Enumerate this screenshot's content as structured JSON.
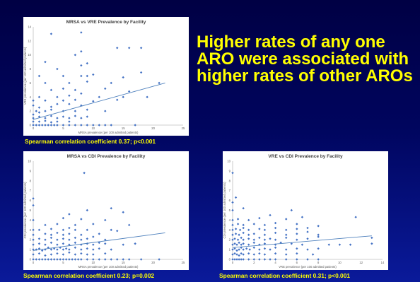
{
  "headline": "Higher rates of any one ARO were associated with higher rates of other AROs",
  "captions": [
    "Spearman correlation coefficient 0.37; p<0.001",
    "Spearman correlation coefficient 0.23; p=0.002",
    "Spearman correlation coefficient 0.31; p<0.001"
  ],
  "colors": {
    "point": "#4472c4",
    "trend": "#4f81bd",
    "caption": "#ffff00"
  },
  "chart_data": [
    {
      "type": "scatter",
      "title": "MRSA vs VRE Prevalence by Facility",
      "xlabel": "MRSA prevalence (per 100 admitted patients)",
      "ylabel": "VRE prevalence (per 100 admitted patients)",
      "xlim": [
        0,
        25
      ],
      "ylim": [
        0,
        14
      ],
      "xticks": [
        0,
        5,
        10,
        15,
        20,
        25
      ],
      "yticks": [
        0,
        2,
        4,
        6,
        8,
        10,
        12,
        14
      ],
      "grid": false,
      "trendline": [
        [
          0,
          0.8
        ],
        [
          22,
          6.0
        ]
      ],
      "points": [
        [
          0,
          0
        ],
        [
          0.5,
          0
        ],
        [
          1,
          0
        ],
        [
          1.5,
          0
        ],
        [
          2,
          0
        ],
        [
          2.5,
          0
        ],
        [
          3,
          0
        ],
        [
          3.5,
          0
        ],
        [
          4,
          0
        ],
        [
          5,
          0
        ],
        [
          6,
          0
        ],
        [
          7,
          0
        ],
        [
          8,
          0
        ],
        [
          9,
          0
        ],
        [
          10,
          0
        ],
        [
          11,
          0
        ],
        [
          12,
          0
        ],
        [
          13,
          0
        ],
        [
          17,
          0
        ],
        [
          0,
          0.5
        ],
        [
          1,
          0.5
        ],
        [
          2,
          0.6
        ],
        [
          3,
          0.4
        ],
        [
          4,
          0.5
        ],
        [
          6,
          0.5
        ],
        [
          0,
          1
        ],
        [
          1,
          1.2
        ],
        [
          2,
          1
        ],
        [
          3,
          1.3
        ],
        [
          4,
          1
        ],
        [
          5,
          1.2
        ],
        [
          6,
          1
        ],
        [
          7,
          1.3
        ],
        [
          8,
          1
        ],
        [
          9,
          1.2
        ],
        [
          0,
          1.5
        ],
        [
          0.5,
          2
        ],
        [
          1,
          1.8
        ],
        [
          2,
          2
        ],
        [
          3,
          2.2
        ],
        [
          5,
          2
        ],
        [
          7,
          2
        ],
        [
          9,
          2.2
        ],
        [
          12,
          2
        ],
        [
          1,
          2.5
        ],
        [
          3,
          2.6
        ],
        [
          4,
          3
        ],
        [
          6,
          3
        ],
        [
          8,
          2.8
        ],
        [
          0,
          2.8
        ],
        [
          0,
          3.5
        ],
        [
          2,
          3.5
        ],
        [
          5,
          3.5
        ],
        [
          7,
          3.6
        ],
        [
          10,
          3.4
        ],
        [
          14,
          3.6
        ],
        [
          1,
          4
        ],
        [
          4,
          4
        ],
        [
          6,
          4.2
        ],
        [
          8,
          4.5
        ],
        [
          11,
          4
        ],
        [
          15,
          4
        ],
        [
          19,
          4
        ],
        [
          3,
          5
        ],
        [
          5,
          5.2
        ],
        [
          7,
          5
        ],
        [
          12,
          5.2
        ],
        [
          16,
          4.8
        ],
        [
          2,
          6
        ],
        [
          6,
          6
        ],
        [
          9,
          6.2
        ],
        [
          13,
          6
        ],
        [
          21,
          6
        ],
        [
          1,
          7
        ],
        [
          5,
          7
        ],
        [
          8,
          7
        ],
        [
          9,
          7
        ],
        [
          10,
          7.2
        ],
        [
          15,
          6.8
        ],
        [
          4,
          8
        ],
        [
          8,
          8.5
        ],
        [
          18,
          7.5
        ],
        [
          2,
          9
        ],
        [
          9,
          8.8
        ],
        [
          7,
          10
        ],
        [
          8,
          10.5
        ],
        [
          14,
          11
        ],
        [
          16,
          11
        ],
        [
          18,
          11
        ],
        [
          3,
          13
        ],
        [
          8,
          13.2
        ]
      ]
    },
    {
      "type": "scatter",
      "title": "MRSA vs CDI Prevalence by Facility",
      "xlabel": "MRSA prevalence (per 100 admitted patients)",
      "ylabel": "CDI prevalence (per 100 admitted patients)",
      "xlim": [
        0,
        25
      ],
      "ylim": [
        0,
        10
      ],
      "xticks": [
        0,
        5,
        10,
        15,
        20,
        25
      ],
      "yticks": [
        0,
        1,
        2,
        3,
        4,
        5,
        6,
        7,
        8,
        9,
        10
      ],
      "grid": false,
      "trendline": [
        [
          0,
          0.9
        ],
        [
          22,
          2.7
        ]
      ],
      "points": [
        [
          0,
          0
        ],
        [
          0.5,
          0
        ],
        [
          1,
          0
        ],
        [
          1.5,
          0
        ],
        [
          2,
          0
        ],
        [
          2.5,
          0
        ],
        [
          3,
          0
        ],
        [
          3.5,
          0
        ],
        [
          4,
          0
        ],
        [
          4.5,
          0
        ],
        [
          5,
          0
        ],
        [
          5.5,
          0
        ],
        [
          6,
          0
        ],
        [
          6.5,
          0
        ],
        [
          7,
          0
        ],
        [
          7.5,
          0
        ],
        [
          8,
          0
        ],
        [
          9,
          0
        ],
        [
          10,
          0
        ],
        [
          11,
          0
        ],
        [
          12,
          0
        ],
        [
          13,
          0
        ],
        [
          14,
          0
        ],
        [
          15,
          0
        ],
        [
          16,
          0
        ],
        [
          18,
          0
        ],
        [
          21,
          0
        ],
        [
          0,
          0.5
        ],
        [
          1,
          0.6
        ],
        [
          2,
          0.4
        ],
        [
          3,
          0.5
        ],
        [
          4,
          0.6
        ],
        [
          5,
          0.5
        ],
        [
          6,
          0.7
        ],
        [
          7,
          0.5
        ],
        [
          8,
          0.6
        ],
        [
          9,
          0.5
        ],
        [
          10,
          0.5
        ],
        [
          12,
          0.6
        ],
        [
          0,
          1
        ],
        [
          0.5,
          1
        ],
        [
          1,
          1.1
        ],
        [
          1.5,
          0.9
        ],
        [
          2,
          1
        ],
        [
          2.5,
          1.2
        ],
        [
          3,
          1
        ],
        [
          3.5,
          1.1
        ],
        [
          4,
          1
        ],
        [
          4.5,
          1.2
        ],
        [
          5,
          1
        ],
        [
          5.5,
          1.1
        ],
        [
          6,
          1
        ],
        [
          7,
          1.2
        ],
        [
          8,
          1
        ],
        [
          9,
          1.1
        ],
        [
          10,
          1
        ],
        [
          11,
          1.1
        ],
        [
          13,
          1
        ],
        [
          0,
          1.5
        ],
        [
          1,
          1.6
        ],
        [
          2,
          1.5
        ],
        [
          3,
          1.7
        ],
        [
          4,
          1.5
        ],
        [
          5,
          1.6
        ],
        [
          6,
          1.5
        ],
        [
          7,
          1.7
        ],
        [
          8,
          1.5
        ],
        [
          9,
          1.6
        ],
        [
          10,
          1.5
        ],
        [
          11,
          1.7
        ],
        [
          12,
          1.6
        ],
        [
          15,
          1.5
        ],
        [
          17,
          1.6
        ],
        [
          0,
          2
        ],
        [
          1,
          2.1
        ],
        [
          2,
          2
        ],
        [
          3,
          2.2
        ],
        [
          4,
          2
        ],
        [
          5,
          2.1
        ],
        [
          6,
          2
        ],
        [
          7,
          2.2
        ],
        [
          8,
          2
        ],
        [
          9,
          2.1
        ],
        [
          10,
          2.3
        ],
        [
          12,
          2
        ],
        [
          0,
          2.5
        ],
        [
          2,
          2.6
        ],
        [
          3,
          2.5
        ],
        [
          4,
          2.7
        ],
        [
          5,
          2.5
        ],
        [
          6,
          2.6
        ],
        [
          8,
          2.5
        ],
        [
          11,
          2.6
        ],
        [
          0,
          3
        ],
        [
          1,
          3
        ],
        [
          3,
          3.1
        ],
        [
          5,
          3
        ],
        [
          6,
          3.2
        ],
        [
          7,
          3
        ],
        [
          9,
          3
        ],
        [
          13,
          3
        ],
        [
          14,
          2.9
        ],
        [
          2,
          3.5
        ],
        [
          4,
          3.6
        ],
        [
          7,
          3.5
        ],
        [
          10,
          3.6
        ],
        [
          16,
          3.5
        ],
        [
          0,
          4
        ],
        [
          5,
          4.2
        ],
        [
          8,
          4.1
        ],
        [
          12,
          4
        ],
        [
          6,
          4.6
        ],
        [
          9,
          5
        ],
        [
          13,
          5.2
        ],
        [
          0,
          5.5
        ],
        [
          0,
          6.2
        ],
        [
          15,
          4.8
        ],
        [
          8.5,
          8.8
        ]
      ]
    },
    {
      "type": "scatter",
      "title": "VRE vs CDI Prevalence by Facility",
      "xlabel": "VRE prevalence (per 100 admitted patients)",
      "ylabel": "CDI prevalence (per 100 admitted patients)",
      "xlim": [
        0,
        14
      ],
      "ylim": [
        0,
        10
      ],
      "xticks": [
        0,
        2,
        4,
        6,
        8,
        10,
        12,
        14
      ],
      "yticks": [
        0,
        1,
        2,
        3,
        4,
        5,
        6,
        7,
        8,
        9,
        10
      ],
      "grid": false,
      "trendline": [
        [
          0,
          1.2
        ],
        [
          13,
          2.4
        ]
      ],
      "points": [
        [
          0,
          0
        ],
        [
          0.2,
          0
        ],
        [
          0.4,
          0
        ],
        [
          0.6,
          0
        ],
        [
          0.8,
          0
        ],
        [
          1,
          0
        ],
        [
          1.5,
          0
        ],
        [
          2,
          0
        ],
        [
          2.5,
          0
        ],
        [
          3,
          0
        ],
        [
          3.5,
          0
        ],
        [
          4,
          0
        ],
        [
          5,
          0
        ],
        [
          6,
          0
        ],
        [
          7,
          0
        ],
        [
          8,
          0
        ],
        [
          0,
          0.5
        ],
        [
          0.2,
          0.6
        ],
        [
          0.4,
          0.5
        ],
        [
          0.6,
          0.4
        ],
        [
          0.8,
          0.6
        ],
        [
          1,
          0.5
        ],
        [
          1.5,
          0.6
        ],
        [
          2,
          0.5
        ],
        [
          2.5,
          0.6
        ],
        [
          3,
          0.5
        ],
        [
          4,
          0.6
        ],
        [
          5,
          0.5
        ],
        [
          6,
          0.6
        ],
        [
          7.5,
          0.5
        ],
        [
          0,
          1
        ],
        [
          0.2,
          1.1
        ],
        [
          0.4,
          0.9
        ],
        [
          0.6,
          1
        ],
        [
          0.8,
          1.2
        ],
        [
          1,
          1
        ],
        [
          1.3,
          1.1
        ],
        [
          1.6,
          1
        ],
        [
          2,
          1.2
        ],
        [
          2.5,
          1
        ],
        [
          3,
          1.1
        ],
        [
          3.5,
          1
        ],
        [
          4,
          1.2
        ],
        [
          5,
          1
        ],
        [
          6,
          1.1
        ],
        [
          7,
          1
        ],
        [
          8,
          1.1
        ],
        [
          0,
          1.5
        ],
        [
          0.2,
          1.6
        ],
        [
          0.4,
          1.5
        ],
        [
          0.6,
          1.7
        ],
        [
          0.8,
          1.5
        ],
        [
          1,
          1.6
        ],
        [
          1.5,
          1.5
        ],
        [
          2,
          1.7
        ],
        [
          2.5,
          1.5
        ],
        [
          3,
          1.6
        ],
        [
          4,
          1.5
        ],
        [
          4.5,
          1.7
        ],
        [
          5.5,
          1.6
        ],
        [
          6.5,
          1.5
        ],
        [
          9,
          1.5
        ],
        [
          10,
          1.5
        ],
        [
          11,
          1.5
        ],
        [
          13,
          1.6
        ],
        [
          0,
          2
        ],
        [
          0.2,
          2.1
        ],
        [
          0.5,
          2
        ],
        [
          0.8,
          2.2
        ],
        [
          1,
          2
        ],
        [
          1.5,
          2.1
        ],
        [
          2,
          2
        ],
        [
          2.5,
          2.2
        ],
        [
          3,
          2
        ],
        [
          3.5,
          2.1
        ],
        [
          4,
          2
        ],
        [
          5,
          2.2
        ],
        [
          6,
          2
        ],
        [
          7,
          2.1
        ],
        [
          8,
          2.3
        ],
        [
          13,
          2.2
        ],
        [
          0,
          2.5
        ],
        [
          0.3,
          2.6
        ],
        [
          0.6,
          2.5
        ],
        [
          1,
          2.7
        ],
        [
          1.5,
          2.5
        ],
        [
          2,
          2.6
        ],
        [
          3,
          2.5
        ],
        [
          4,
          2.7
        ],
        [
          5,
          2.5
        ],
        [
          6,
          2.6
        ],
        [
          7,
          2.8
        ],
        [
          8,
          2.5
        ],
        [
          0,
          3
        ],
        [
          0.3,
          3.1
        ],
        [
          0.7,
          3
        ],
        [
          1,
          3.2
        ],
        [
          1.5,
          3
        ],
        [
          2.5,
          3.1
        ],
        [
          3,
          3
        ],
        [
          4,
          3.2
        ],
        [
          5,
          3
        ],
        [
          6,
          3.1
        ],
        [
          7,
          3.2
        ],
        [
          8,
          3.4
        ],
        [
          0,
          3.5
        ],
        [
          0.5,
          3.6
        ],
        [
          1,
          3.5
        ],
        [
          2,
          3.6
        ],
        [
          3,
          3.5
        ],
        [
          4,
          3.7
        ],
        [
          6,
          3.6
        ],
        [
          0,
          4
        ],
        [
          0.5,
          4.1
        ],
        [
          1.5,
          4
        ],
        [
          2.5,
          4.2
        ],
        [
          3.5,
          4.5
        ],
        [
          5,
          4.1
        ],
        [
          6.5,
          4.3
        ],
        [
          11.5,
          4.3
        ],
        [
          0,
          5
        ],
        [
          1,
          5.2
        ],
        [
          5.5,
          5
        ],
        [
          0,
          5.8
        ],
        [
          0.3,
          6.3
        ],
        [
          0,
          8.8
        ]
      ]
    }
  ]
}
